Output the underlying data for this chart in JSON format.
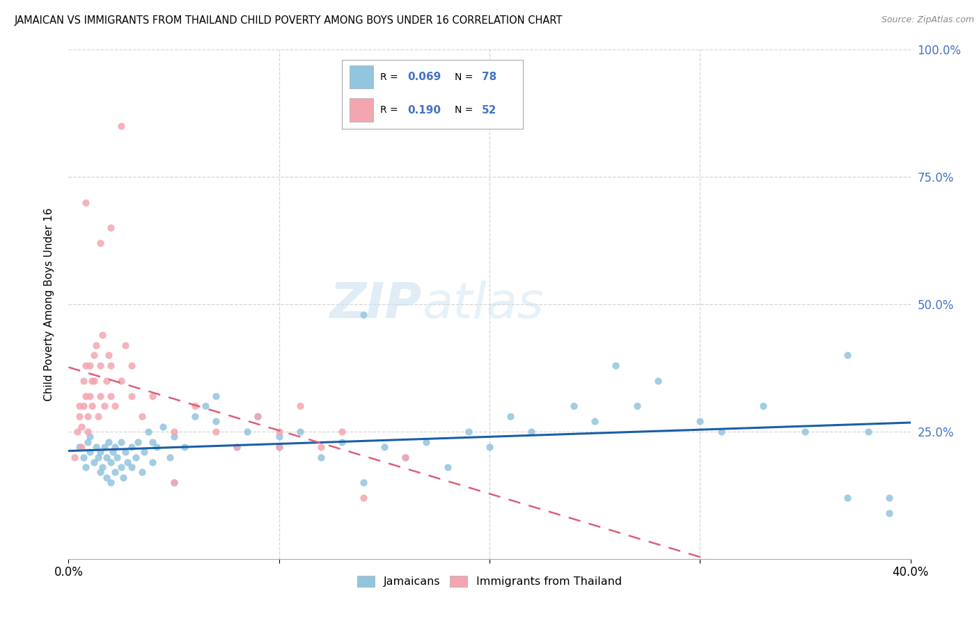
{
  "title": "JAMAICAN VS IMMIGRANTS FROM THAILAND CHILD POVERTY AMONG BOYS UNDER 16 CORRELATION CHART",
  "source": "Source: ZipAtlas.com",
  "ylabel": "Child Poverty Among Boys Under 16",
  "xlim": [
    0.0,
    0.4
  ],
  "ylim": [
    0.0,
    1.0
  ],
  "r_jamaican": 0.069,
  "n_jamaican": 78,
  "r_thailand": 0.19,
  "n_thailand": 52,
  "color_jamaican": "#92C5DE",
  "color_thailand": "#F4A6B0",
  "trendline_jamaican_color": "#1A5EA8",
  "trendline_thailand_color": "#D9607A",
  "watermark_zip": "ZIP",
  "watermark_atlas": "atlas",
  "background_color": "#FFFFFF",
  "grid_color": "#CCCCCC",
  "jamaican_x": [
    0.005,
    0.007,
    0.008,
    0.009,
    0.01,
    0.01,
    0.012,
    0.013,
    0.014,
    0.015,
    0.015,
    0.016,
    0.017,
    0.018,
    0.018,
    0.019,
    0.02,
    0.02,
    0.021,
    0.022,
    0.022,
    0.023,
    0.025,
    0.025,
    0.026,
    0.027,
    0.028,
    0.03,
    0.03,
    0.032,
    0.033,
    0.035,
    0.036,
    0.038,
    0.04,
    0.04,
    0.042,
    0.045,
    0.048,
    0.05,
    0.05,
    0.055,
    0.06,
    0.065,
    0.07,
    0.07,
    0.08,
    0.085,
    0.09,
    0.1,
    0.1,
    0.11,
    0.12,
    0.13,
    0.14,
    0.15,
    0.16,
    0.17,
    0.18,
    0.19,
    0.2,
    0.21,
    0.22,
    0.24,
    0.25,
    0.27,
    0.28,
    0.3,
    0.31,
    0.33,
    0.35,
    0.37,
    0.37,
    0.38,
    0.39,
    0.39,
    0.14,
    0.26
  ],
  "jamaican_y": [
    0.22,
    0.2,
    0.18,
    0.23,
    0.21,
    0.24,
    0.19,
    0.22,
    0.2,
    0.17,
    0.21,
    0.18,
    0.22,
    0.16,
    0.2,
    0.23,
    0.15,
    0.19,
    0.21,
    0.17,
    0.22,
    0.2,
    0.18,
    0.23,
    0.16,
    0.21,
    0.19,
    0.22,
    0.18,
    0.2,
    0.23,
    0.17,
    0.21,
    0.25,
    0.19,
    0.23,
    0.22,
    0.26,
    0.2,
    0.24,
    0.15,
    0.22,
    0.28,
    0.3,
    0.27,
    0.32,
    0.22,
    0.25,
    0.28,
    0.24,
    0.22,
    0.25,
    0.2,
    0.23,
    0.48,
    0.22,
    0.2,
    0.23,
    0.18,
    0.25,
    0.22,
    0.28,
    0.25,
    0.3,
    0.27,
    0.3,
    0.35,
    0.27,
    0.25,
    0.3,
    0.25,
    0.4,
    0.12,
    0.25,
    0.09,
    0.12,
    0.15,
    0.38
  ],
  "thailand_x": [
    0.003,
    0.004,
    0.005,
    0.005,
    0.006,
    0.006,
    0.007,
    0.007,
    0.008,
    0.008,
    0.009,
    0.009,
    0.01,
    0.01,
    0.011,
    0.011,
    0.012,
    0.012,
    0.013,
    0.014,
    0.015,
    0.015,
    0.016,
    0.017,
    0.018,
    0.019,
    0.02,
    0.02,
    0.022,
    0.025,
    0.027,
    0.03,
    0.03,
    0.035,
    0.04,
    0.05,
    0.06,
    0.07,
    0.08,
    0.09,
    0.1,
    0.1,
    0.11,
    0.12,
    0.13,
    0.14,
    0.16,
    0.05,
    0.02,
    0.025,
    0.008,
    0.015
  ],
  "thailand_y": [
    0.2,
    0.25,
    0.28,
    0.3,
    0.22,
    0.26,
    0.3,
    0.35,
    0.32,
    0.38,
    0.25,
    0.28,
    0.32,
    0.38,
    0.3,
    0.35,
    0.4,
    0.35,
    0.42,
    0.28,
    0.32,
    0.38,
    0.44,
    0.3,
    0.35,
    0.4,
    0.32,
    0.38,
    0.3,
    0.35,
    0.42,
    0.32,
    0.38,
    0.28,
    0.32,
    0.25,
    0.3,
    0.25,
    0.22,
    0.28,
    0.22,
    0.25,
    0.3,
    0.22,
    0.25,
    0.12,
    0.2,
    0.15,
    0.65,
    0.85,
    0.7,
    0.62
  ]
}
